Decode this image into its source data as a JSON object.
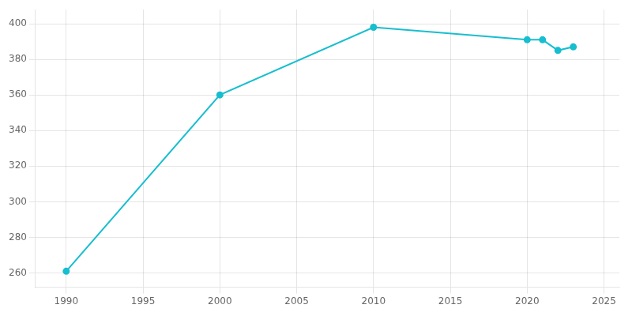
{
  "chart_data": {
    "type": "line",
    "x": [
      1990,
      2000,
      2010,
      2020,
      2021,
      2022,
      2023
    ],
    "values": [
      261,
      360,
      398,
      391,
      391,
      385,
      387
    ],
    "color": "#17BECF",
    "marker": "circle",
    "xlim": [
      1988,
      2026
    ],
    "ylim": [
      252,
      408
    ],
    "xticks": [
      1990,
      1995,
      2000,
      2005,
      2010,
      2015,
      2020,
      2025
    ],
    "yticks": [
      260,
      280,
      300,
      320,
      340,
      360,
      380,
      400
    ],
    "grid": true
  }
}
